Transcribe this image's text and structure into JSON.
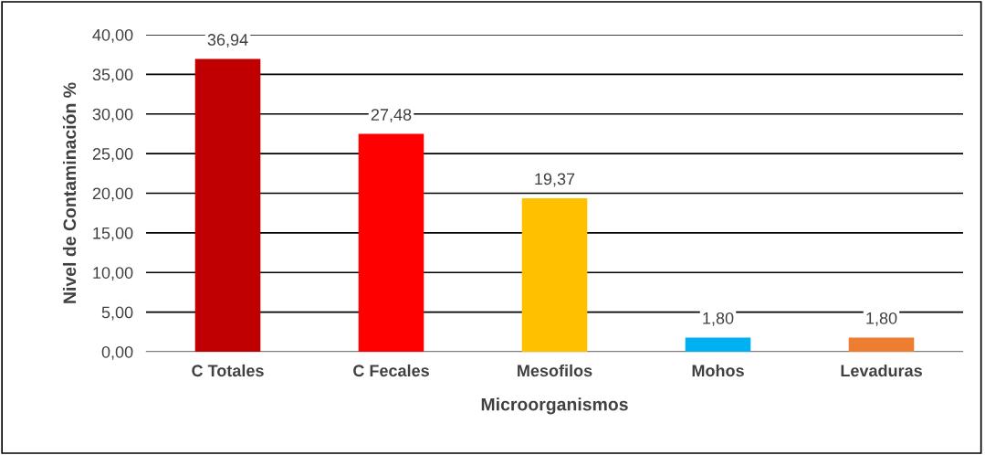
{
  "chart_data": {
    "type": "bar",
    "xlabel": "Microorganismos",
    "ylabel": "Nivel de Contaminación %",
    "categories": [
      "C Totales",
      "C Fecales",
      "Mesofilos",
      "Mohos",
      "Levaduras"
    ],
    "values": [
      36.94,
      27.48,
      19.37,
      1.8,
      1.8
    ],
    "colors": [
      "#c00000",
      "#ff0000",
      "#ffc000",
      "#00b0f0",
      "#ed7d31"
    ],
    "value_labels": [
      "36,94",
      "27,48",
      "19,37",
      "1,80",
      "1,80"
    ],
    "ylim": [
      0,
      40
    ],
    "yticks": [
      {
        "value": 0,
        "label": "0,00"
      },
      {
        "value": 5,
        "label": "5,00"
      },
      {
        "value": 10,
        "label": "10,00"
      },
      {
        "value": 15,
        "label": "15,00"
      },
      {
        "value": 20,
        "label": "20,00"
      },
      {
        "value": 25,
        "label": "25,00"
      },
      {
        "value": 30,
        "label": "30,00"
      },
      {
        "value": 35,
        "label": "35,00"
      },
      {
        "value": 40,
        "label": "40,00"
      }
    ],
    "grid": "y",
    "legend": false
  }
}
